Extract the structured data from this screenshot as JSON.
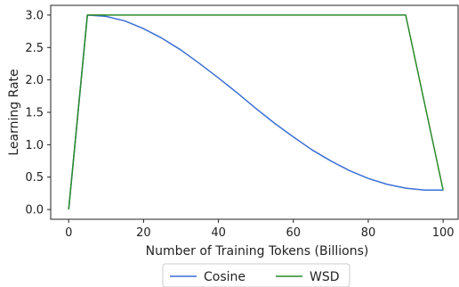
{
  "chart_data": {
    "type": "line",
    "xlabel": "Number of Training Tokens (Billions)",
    "ylabel": "Learning Rate",
    "xlim": [
      -4.8,
      104
    ],
    "ylim": [
      -0.15,
      3.15
    ],
    "xticks": [
      0,
      20,
      40,
      60,
      80,
      100
    ],
    "yticks": [
      0.0,
      0.5,
      1.0,
      1.5,
      2.0,
      2.5,
      3.0
    ],
    "xtick_labels": [
      "0",
      "20",
      "40",
      "60",
      "80",
      "100"
    ],
    "ytick_labels": [
      "0.0",
      "0.5",
      "1.0",
      "1.5",
      "2.0",
      "2.5",
      "3.0"
    ],
    "grid": false,
    "legend_position": "bottom-center-outside",
    "series": [
      {
        "name": "Cosine",
        "color": "#3b6fd4",
        "x": [
          0,
          5,
          10,
          15,
          20,
          25,
          30,
          35,
          40,
          45,
          50,
          55,
          60,
          65,
          70,
          75,
          80,
          85,
          90,
          95,
          100
        ],
        "y": [
          0.0,
          3.0,
          2.98,
          2.91,
          2.79,
          2.64,
          2.46,
          2.25,
          2.03,
          1.8,
          1.56,
          1.33,
          1.12,
          0.92,
          0.75,
          0.6,
          0.48,
          0.39,
          0.33,
          0.3,
          0.3
        ]
      },
      {
        "name": "WSD",
        "color": "#2a8a2a",
        "x": [
          0,
          5,
          90,
          100
        ],
        "y": [
          0.0,
          3.0,
          3.0,
          0.3
        ]
      }
    ]
  }
}
